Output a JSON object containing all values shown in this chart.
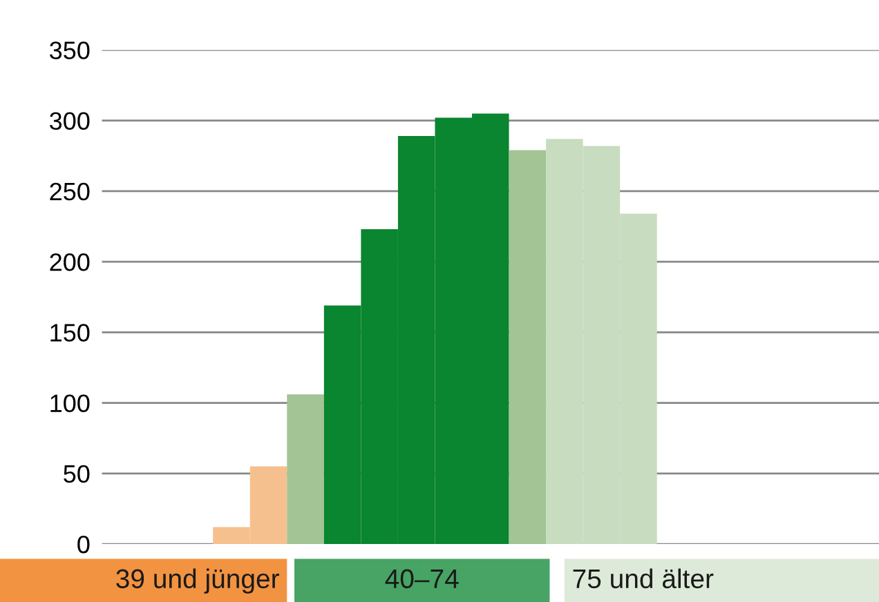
{
  "chart_data": {
    "type": "bar",
    "categories": [
      null,
      null,
      null,
      null,
      null,
      null,
      null,
      null,
      null,
      null,
      null,
      null,
      null,
      null,
      null,
      null,
      null,
      null,
      null,
      null,
      null
    ],
    "values": [
      null,
      null,
      null,
      12,
      55,
      106,
      169,
      223,
      289,
      302,
      305,
      279,
      287,
      282,
      234,
      null,
      null,
      null,
      null,
      null,
      null
    ],
    "colors": [
      "#f6c08e",
      "#f6c08e",
      "#f6c08e",
      "#f6c08e",
      "#f6c08e",
      "#a3c495",
      "#0a8530",
      "#0a8530",
      "#0a8530",
      "#0a8530",
      "#0a8530",
      "#a3c495",
      "#c8dcc0",
      "#c8dcc0",
      "#c8dcc0",
      "#c8dcc0",
      "#c8dcc0",
      "#c8dcc0",
      "#c8dcc0",
      "#c8dcc0",
      "#c8dcc0"
    ],
    "ylim": [
      0,
      350
    ],
    "yticks": [
      0,
      50,
      100,
      150,
      200,
      250,
      300,
      350
    ],
    "grid": "y",
    "annotations": [
      "39 und jünger",
      "40–74",
      "75 und älter"
    ]
  }
}
